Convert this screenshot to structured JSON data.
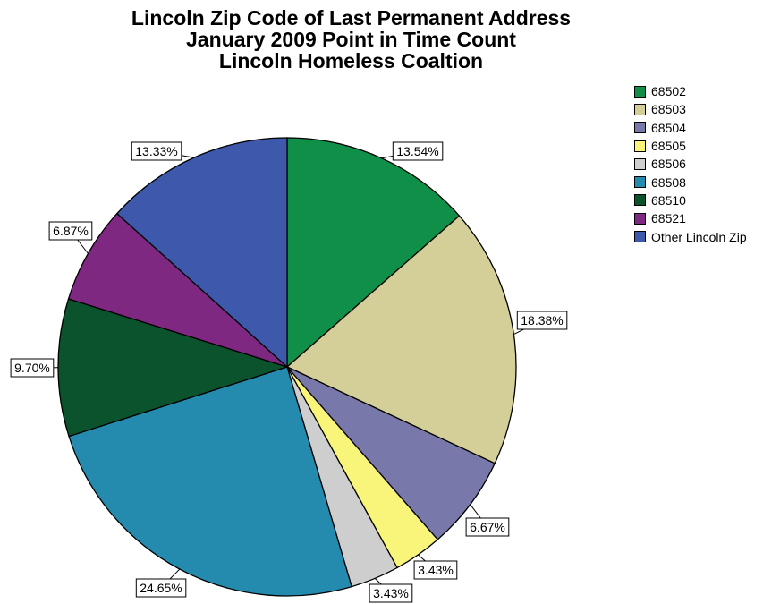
{
  "chart_data": {
    "type": "pie",
    "title": [
      "Lincoln Zip Code of Last Permanent Address",
      "January 2009 Point in Time Count",
      "Lincoln Homeless Coaltion"
    ],
    "start_angle_deg": 0,
    "direction": "clockwise",
    "legend_position": "top-right",
    "slices": [
      {
        "label": "68502",
        "value": 13.54,
        "value_label": "13.54%",
        "color": "#0f8f47"
      },
      {
        "label": "68503",
        "value": 18.38,
        "value_label": "18.38%",
        "color": "#d4ce98"
      },
      {
        "label": "68504",
        "value": 6.67,
        "value_label": "6.67%",
        "color": "#7978aa"
      },
      {
        "label": "68505",
        "value": 3.43,
        "value_label": "3.43%",
        "color": "#f8f57a"
      },
      {
        "label": "68506",
        "value": 3.43,
        "value_label": "3.43%",
        "color": "#cecece"
      },
      {
        "label": "68508",
        "value": 24.65,
        "value_label": "24.65%",
        "color": "#248baf"
      },
      {
        "label": "68510",
        "value": 9.7,
        "value_label": "9.70%",
        "color": "#0a532d"
      },
      {
        "label": "68521",
        "value": 6.87,
        "value_label": "6.87%",
        "color": "#7e2882"
      },
      {
        "label": "Other Lincoln Zip",
        "value": 13.33,
        "value_label": "13.33%",
        "color": "#3e59ab"
      }
    ]
  }
}
